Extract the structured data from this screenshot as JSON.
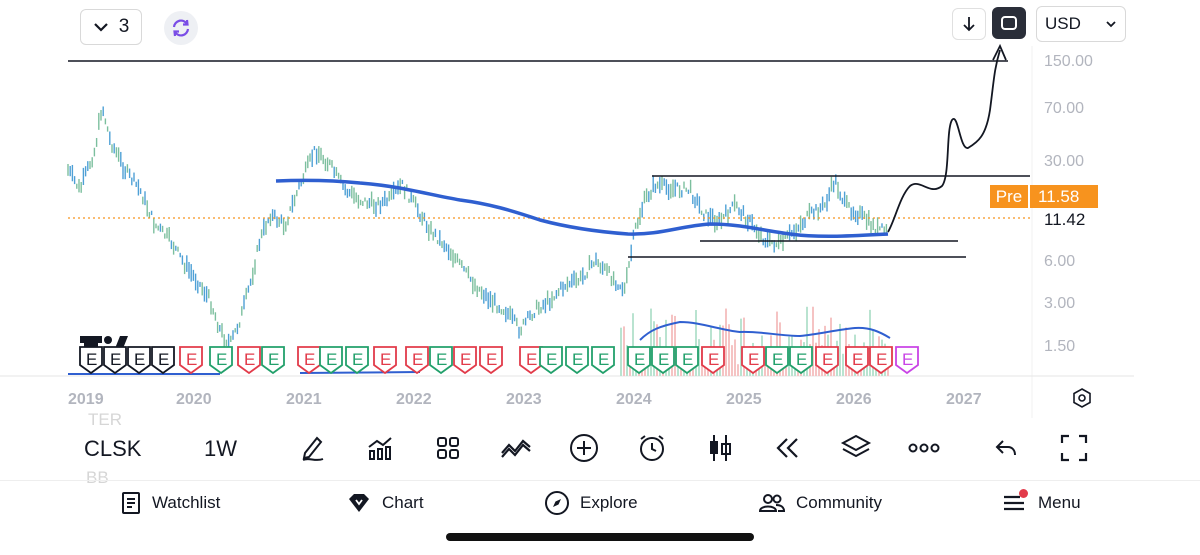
{
  "topbar": {
    "layout_count": "3",
    "currency": "USD",
    "icons": {
      "chevron": "chevron-down-icon",
      "sync": "sync-icon",
      "download": "download-arrow-icon",
      "fullscreen": "fullscreen-icon"
    }
  },
  "price_scale": {
    "labels": [
      "150.00",
      "70.00",
      "30.00",
      "6.00",
      "3.00",
      "1.50"
    ],
    "pre_label": "Pre",
    "pre_price": "11.58",
    "last_price": "11.42",
    "badge_color": "#f7931e"
  },
  "time_scale": {
    "labels": [
      "2019",
      "2020",
      "2021",
      "2022",
      "2023",
      "2024",
      "2025",
      "2026",
      "2027"
    ]
  },
  "earnings_markers": [
    "E",
    "E",
    "E",
    "E",
    "E",
    "E",
    "E",
    "E",
    "E",
    "E",
    "E",
    "E",
    "E",
    "E",
    "E",
    "E",
    "E",
    "E",
    "E",
    "E",
    "E",
    "E",
    "E",
    "E",
    "E",
    "E",
    "E",
    "E",
    "E",
    "E",
    "E",
    "E"
  ],
  "series_colors": {
    "candle": "#5aa7d8",
    "moving_average": "#2f5fd0",
    "volume_up": "#b9e3d0",
    "volume_down": "#f5c3c3",
    "volume_ma": "#2f5fd0",
    "marker_red": "#e23b4a",
    "marker_green": "#22a06b",
    "marker_black": "#131722",
    "marker_purple": "#c944e6"
  },
  "toolbar": {
    "symbol": "CLSK",
    "interval": "1W",
    "faint_symbols": [
      "TER",
      "BB"
    ],
    "tools": [
      "pen-icon",
      "indicators-icon",
      "grid-icon",
      "patterns-icon",
      "plus-circle-icon",
      "alarm-icon",
      "candles-icon",
      "replay-icon",
      "layers-icon",
      "more-icon",
      "undo-icon",
      "fullscreen-corners-icon"
    ]
  },
  "bottom_nav": {
    "items": [
      {
        "label": "Watchlist",
        "icon": "watchlist-icon"
      },
      {
        "label": "Chart",
        "icon": "chart-gem-icon"
      },
      {
        "label": "Explore",
        "icon": "compass-icon"
      },
      {
        "label": "Community",
        "icon": "community-icon"
      },
      {
        "label": "Menu",
        "icon": "menu-icon"
      }
    ],
    "menu_badge_color": "#e23b4a"
  }
}
